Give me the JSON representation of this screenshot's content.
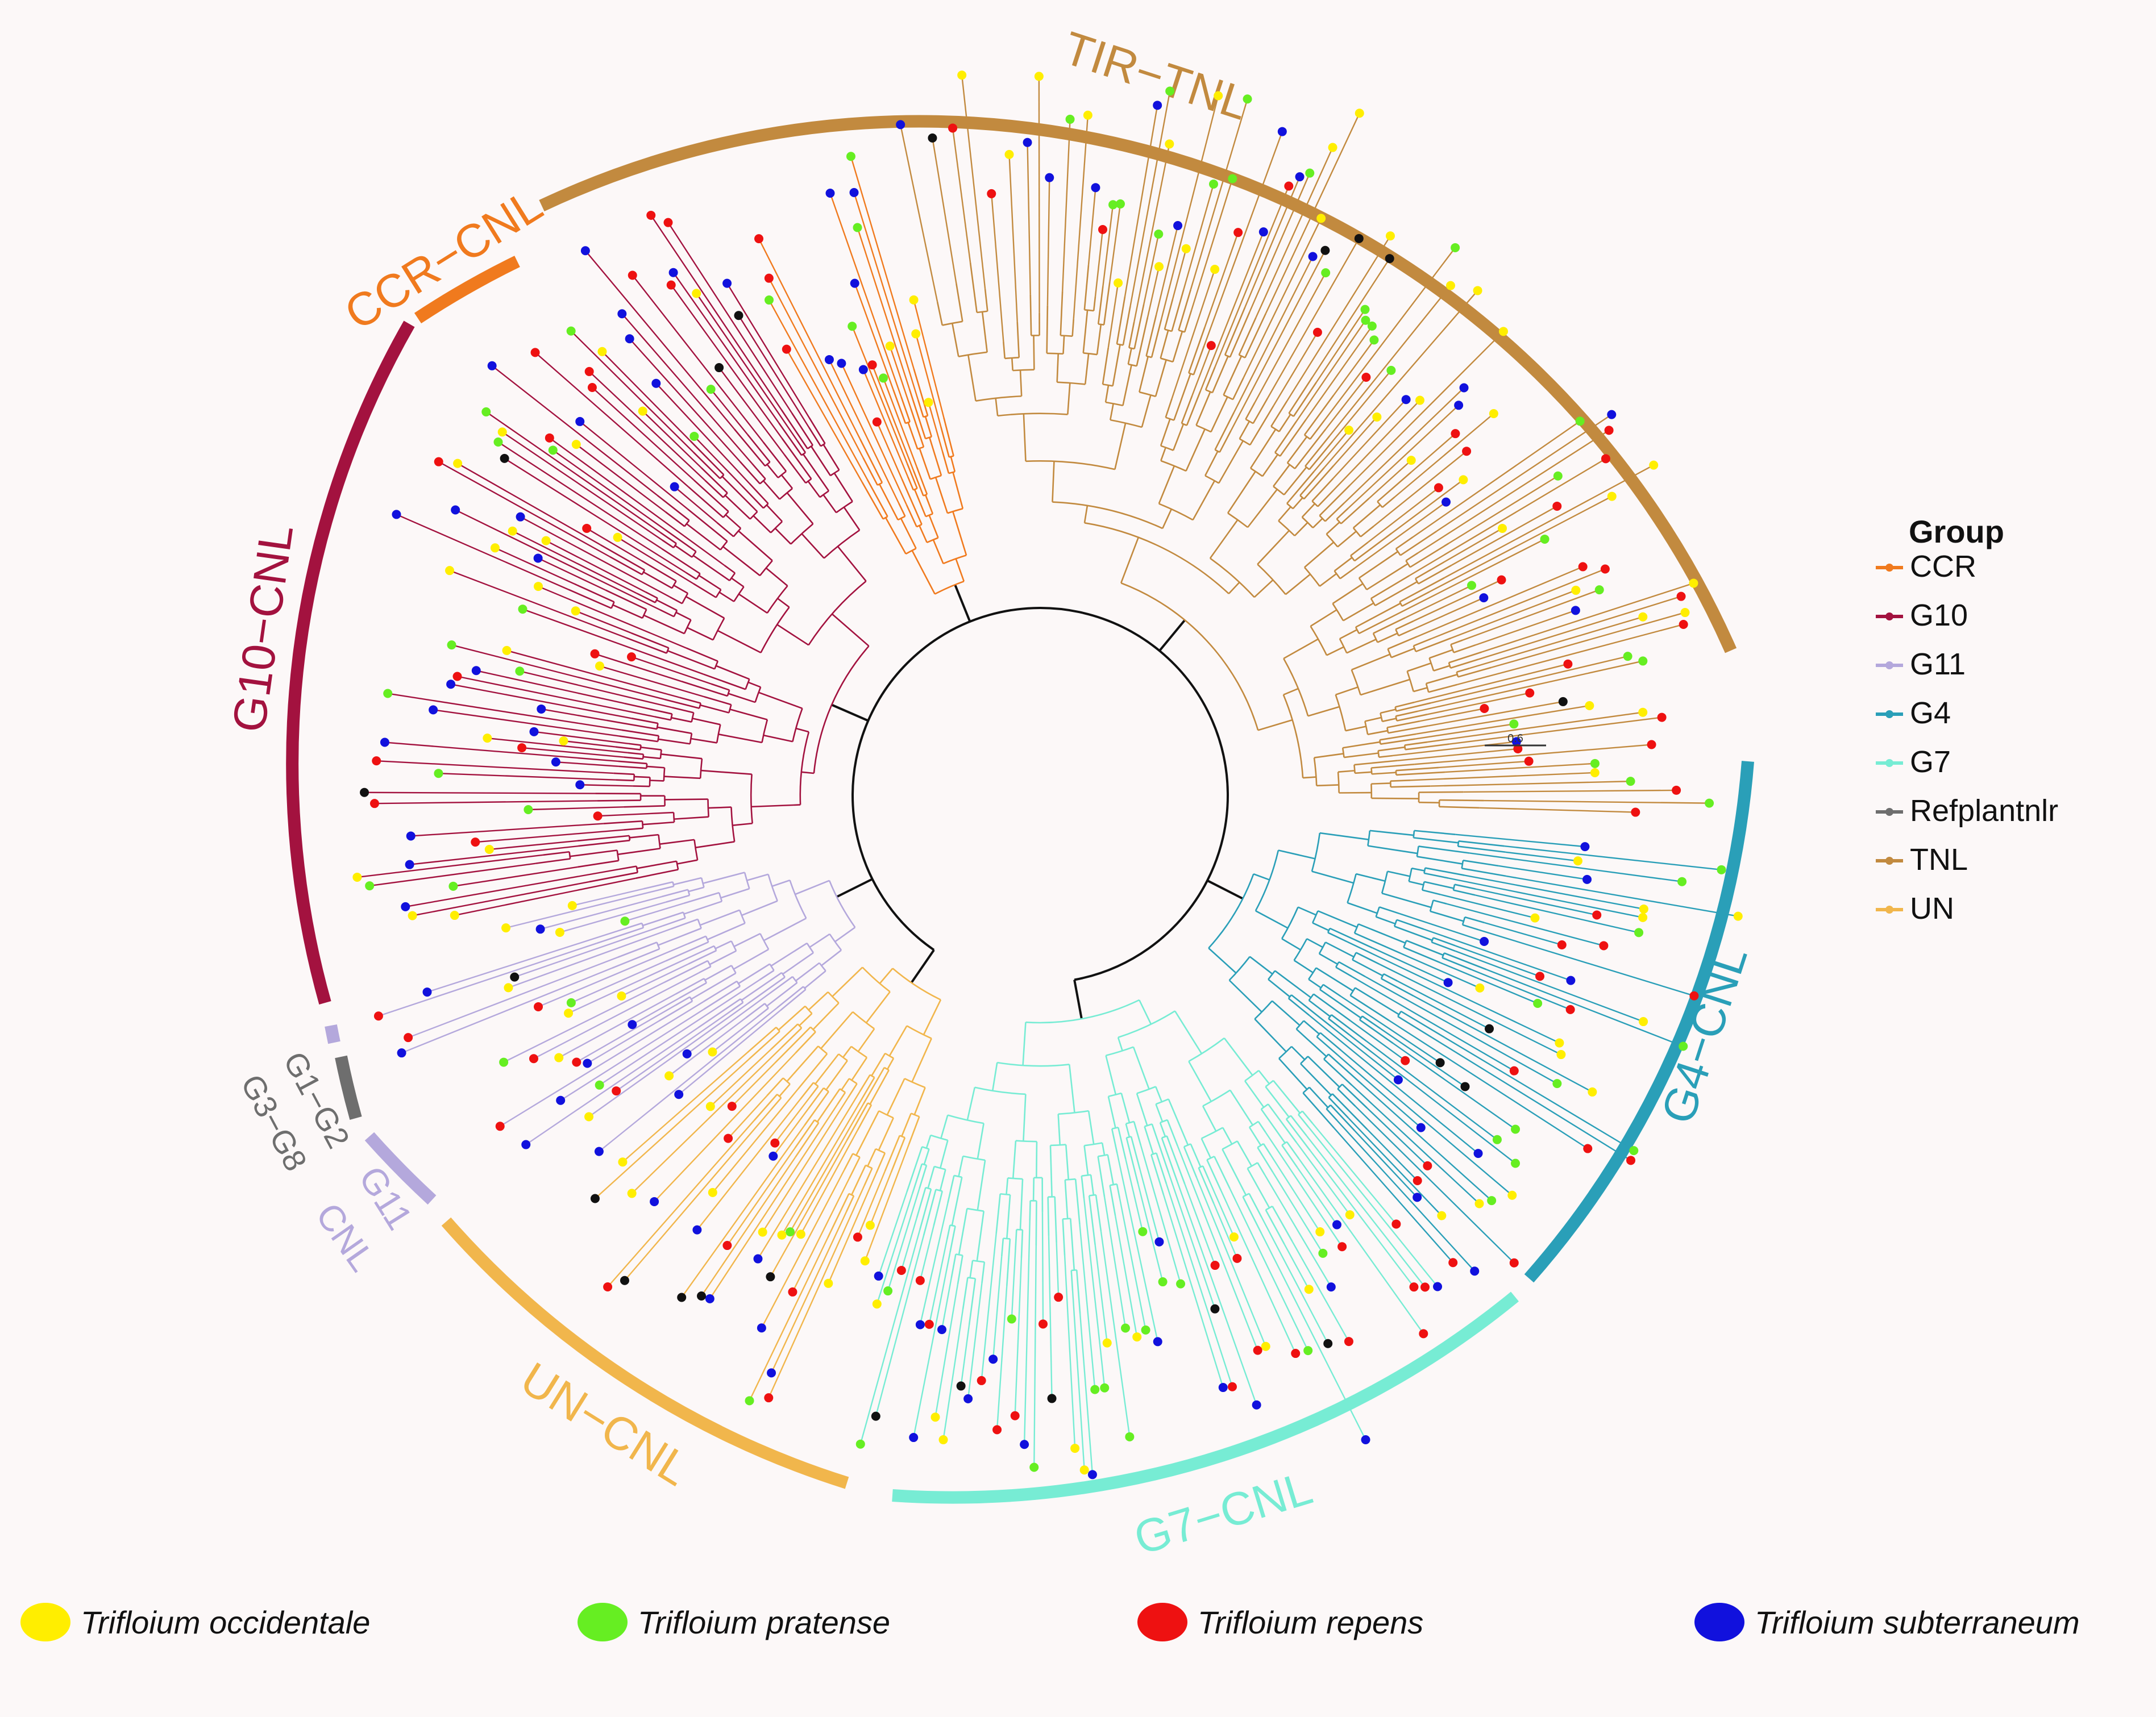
{
  "figure": {
    "type": "circular-phylogenetic-tree",
    "scale_bar_label": "0.6"
  },
  "clades": [
    {
      "key": "tir",
      "label": "TIR−TNL",
      "color": "#c28a3f",
      "start": 0,
      "end": 100
    },
    {
      "key": "g4",
      "label": "G4−CNL",
      "color": "#2a9fb8",
      "start": 0,
      "end": 100
    },
    {
      "key": "g7",
      "label": "G7−CNL",
      "color": "#77ecd4",
      "start": 0,
      "end": 100
    },
    {
      "key": "un",
      "label": "UN−CNL",
      "color": "#f1b64c",
      "start": 0,
      "end": 100
    },
    {
      "key": "g11",
      "label1": "G11",
      "label2": "CNL",
      "color": "#b4a8dc"
    },
    {
      "key": "g1g2",
      "label1": "G1−G2",
      "label2": "G3−G8",
      "color": "#6e6e6e"
    },
    {
      "key": "g10",
      "label": "G10−CNL",
      "color": "#a3123f"
    },
    {
      "key": "ccr",
      "label": "CCR−CNL",
      "color": "#f07a1e"
    }
  ],
  "legend": {
    "title": "Group",
    "items": [
      {
        "label": "CCR",
        "color": "#f07a1e"
      },
      {
        "label": "G10",
        "color": "#a3123f"
      },
      {
        "label": "G11",
        "color": "#b4a8dc"
      },
      {
        "label": "G4",
        "color": "#2a9fb8"
      },
      {
        "label": "G7",
        "color": "#77ecd4"
      },
      {
        "label": "Refplantnlr",
        "color": "#6e6e6e"
      },
      {
        "label": "TNL",
        "color": "#c28a3f"
      },
      {
        "label": "UN",
        "color": "#f1b64c"
      }
    ]
  },
  "species": [
    {
      "label": "Trifloium occidentale",
      "color": "#ffee00"
    },
    {
      "label": "Trifloium pratense",
      "color": "#66ee22"
    },
    {
      "label": "Trifloium repens",
      "color": "#ee1111"
    },
    {
      "label": "Trifloium subterraneum",
      "color": "#1111dd"
    }
  ]
}
